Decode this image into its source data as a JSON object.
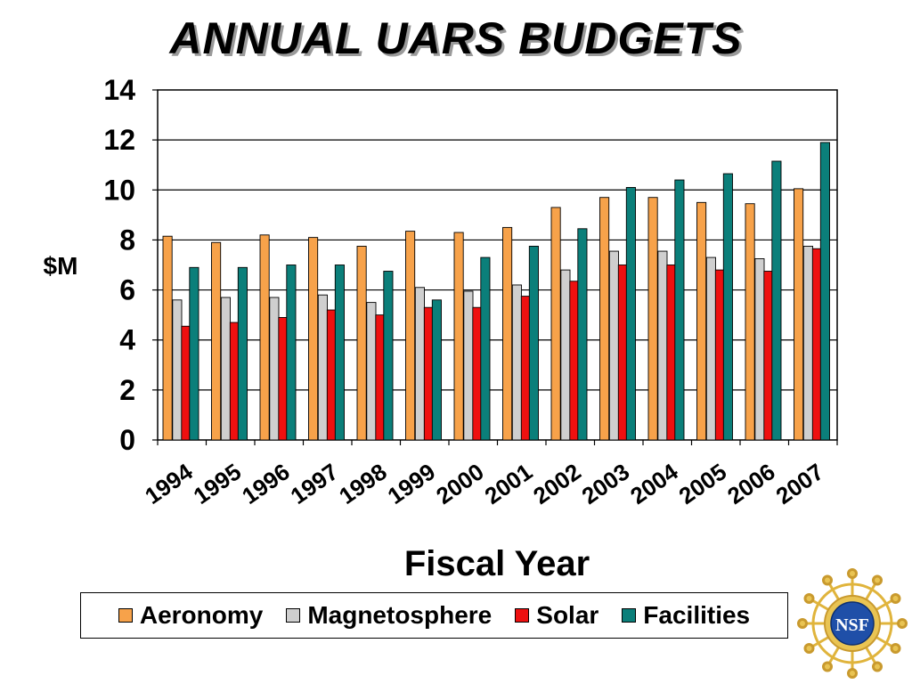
{
  "chart_data": {
    "type": "bar",
    "title": "ANNUAL UARS BUDGETS",
    "xlabel": "Fiscal Year",
    "ylabel": "$M",
    "ylim": [
      0,
      14
    ],
    "yticks": [
      0,
      2,
      4,
      6,
      8,
      10,
      12,
      14
    ],
    "grid": true,
    "legend_position": "bottom",
    "categories": [
      "1994",
      "1995",
      "1996",
      "1997",
      "1998",
      "1999",
      "2000",
      "2001",
      "2002",
      "2003",
      "2004",
      "2005",
      "2006",
      "2007"
    ],
    "series": [
      {
        "name": "Aeronomy",
        "color": "#f7a24a",
        "values": [
          8.15,
          7.9,
          8.2,
          8.1,
          7.75,
          8.35,
          8.3,
          8.5,
          9.3,
          9.7,
          9.7,
          9.5,
          9.45,
          10.05
        ]
      },
      {
        "name": "Magnetosphere",
        "color": "#cfcfcf",
        "values": [
          5.6,
          5.7,
          5.7,
          5.8,
          5.5,
          6.1,
          5.95,
          6.2,
          6.8,
          7.55,
          7.55,
          7.3,
          7.25,
          7.75
        ]
      },
      {
        "name": "Solar",
        "color": "#ee1010",
        "values": [
          4.55,
          4.7,
          4.9,
          5.2,
          5.0,
          5.3,
          5.3,
          5.75,
          6.35,
          7.0,
          7.0,
          6.8,
          6.75,
          7.65
        ]
      },
      {
        "name": "Facilities",
        "color": "#0b7f7a",
        "values": [
          6.9,
          6.9,
          7.0,
          7.0,
          6.75,
          5.6,
          7.3,
          7.75,
          8.45,
          10.1,
          10.4,
          10.65,
          11.15,
          11.9
        ]
      }
    ]
  },
  "logo": {
    "text": "NSF"
  }
}
